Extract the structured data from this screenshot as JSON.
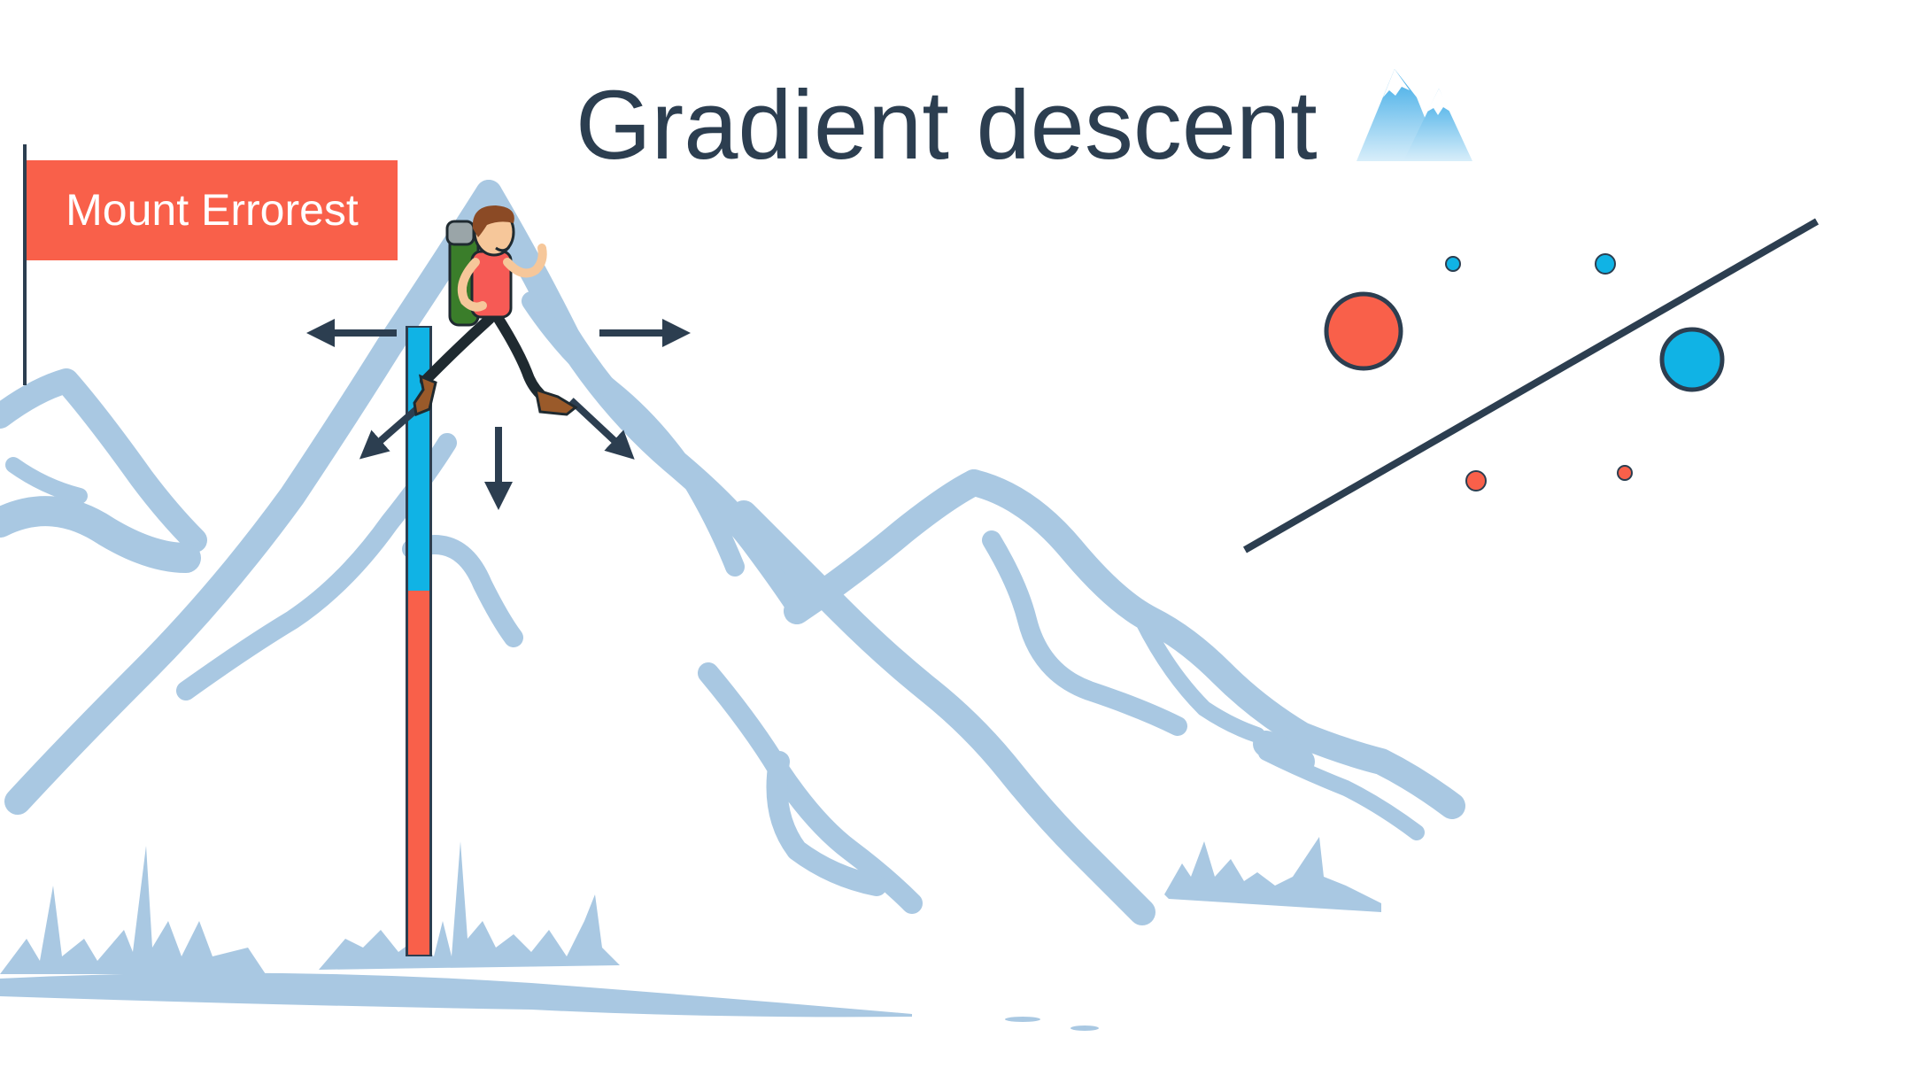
{
  "title": "Gradient descent",
  "flag": {
    "label": "Mount Errorest"
  },
  "colors": {
    "mountain": "#a9c8e2",
    "dark": "#2c3e50",
    "coral": "#f9604a",
    "cyan": "#10b3e5",
    "title_text": "#2c3e50"
  },
  "icons": {
    "title_icon": "snowy-mountains-icon",
    "hiker": "hiker-icon",
    "arrows": [
      "left-arrow-icon",
      "right-arrow-icon",
      "down-left-arrow-icon",
      "down-arrow-icon",
      "down-right-arrow-icon"
    ]
  },
  "error_bar": {
    "blue_fraction": 0.42,
    "red_fraction": 0.58
  },
  "scatter_legend": {
    "points": [
      {
        "color": "coral",
        "size": "large"
      },
      {
        "color": "cyan",
        "size": "large"
      },
      {
        "color": "cyan",
        "size": "small"
      },
      {
        "color": "cyan",
        "size": "small"
      },
      {
        "color": "coral",
        "size": "small"
      },
      {
        "color": "coral",
        "size": "small"
      }
    ]
  }
}
